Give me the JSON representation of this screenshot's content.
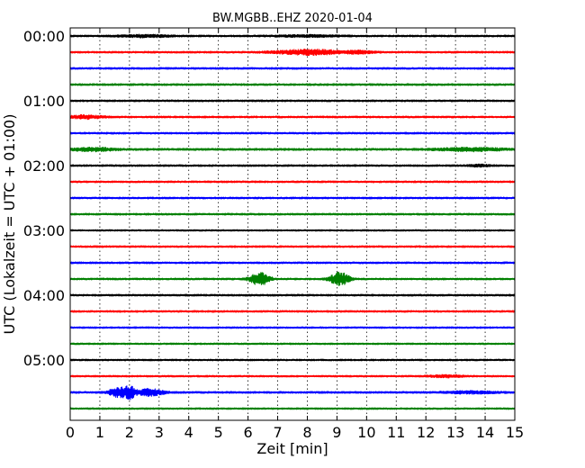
{
  "chart_data": {
    "type": "line",
    "title": "BW.MGBB..EHZ 2020-01-04",
    "xlabel": "Zeit  [min]",
    "ylabel": "UTC (Lokalzeit = UTC + 01:00)",
    "xlim": [
      0,
      15
    ],
    "x_ticks": [
      "0",
      "1",
      "2",
      "3",
      "4",
      "5",
      "6",
      "7",
      "8",
      "9",
      "10",
      "11",
      "12",
      "13",
      "14",
      "15"
    ],
    "y_tick_labels": [
      "00:00",
      "01:00",
      "02:00",
      "03:00",
      "04:00",
      "05:00"
    ],
    "grid": "vertical dotted at each minute",
    "trace_interval_min": 15,
    "trace_colors": [
      "#000000",
      "#ff0000",
      "#0000ff",
      "#008000"
    ],
    "series": [
      {
        "start": "00:00",
        "color": "#000000",
        "amplitude": 0.6,
        "events": [
          {
            "t": 2.5,
            "width": 1.2,
            "amp": 0.7
          },
          {
            "t": 8.0,
            "width": 1.5,
            "amp": 0.5
          }
        ]
      },
      {
        "start": "00:15",
        "color": "#ff0000",
        "amplitude": 0.6,
        "events": [
          {
            "t": 8.1,
            "width": 1.6,
            "amp": 1.7
          },
          {
            "t": 9.8,
            "width": 0.6,
            "amp": 0.8
          }
        ]
      },
      {
        "start": "00:30",
        "color": "#0000ff",
        "amplitude": 0.6,
        "events": []
      },
      {
        "start": "00:45",
        "color": "#008000",
        "amplitude": 0.65,
        "events": []
      },
      {
        "start": "01:00",
        "color": "#000000",
        "amplitude": 0.6,
        "events": []
      },
      {
        "start": "01:15",
        "color": "#ff0000",
        "amplitude": 0.6,
        "events": [
          {
            "t": 0.5,
            "width": 0.8,
            "amp": 1.1
          }
        ]
      },
      {
        "start": "01:30",
        "color": "#0000ff",
        "amplitude": 0.6,
        "events": []
      },
      {
        "start": "01:45",
        "color": "#008000",
        "amplitude": 0.7,
        "events": [
          {
            "t": 0.8,
            "width": 1.0,
            "amp": 1.0
          },
          {
            "t": 13.5,
            "width": 1.5,
            "amp": 1.0
          }
        ]
      },
      {
        "start": "02:00",
        "color": "#000000",
        "amplitude": 0.6,
        "events": [
          {
            "t": 13.8,
            "width": 0.5,
            "amp": 0.6
          }
        ]
      },
      {
        "start": "02:15",
        "color": "#ff0000",
        "amplitude": 0.6,
        "events": []
      },
      {
        "start": "02:30",
        "color": "#0000ff",
        "amplitude": 0.6,
        "events": []
      },
      {
        "start": "02:45",
        "color": "#008000",
        "amplitude": 0.6,
        "events": []
      },
      {
        "start": "03:00",
        "color": "#000000",
        "amplitude": 0.5,
        "events": []
      },
      {
        "start": "03:15",
        "color": "#ff0000",
        "amplitude": 0.6,
        "events": []
      },
      {
        "start": "03:30",
        "color": "#0000ff",
        "amplitude": 0.6,
        "events": []
      },
      {
        "start": "03:45",
        "color": "#008000",
        "amplitude": 0.6,
        "events": [
          {
            "t": 6.4,
            "width": 0.45,
            "amp": 4.5
          },
          {
            "t": 9.1,
            "width": 0.45,
            "amp": 4.5
          }
        ]
      },
      {
        "start": "04:00",
        "color": "#000000",
        "amplitude": 0.6,
        "events": []
      },
      {
        "start": "04:15",
        "color": "#ff0000",
        "amplitude": 0.6,
        "events": []
      },
      {
        "start": "04:30",
        "color": "#0000ff",
        "amplitude": 0.55,
        "events": []
      },
      {
        "start": "04:45",
        "color": "#008000",
        "amplitude": 0.55,
        "events": []
      },
      {
        "start": "05:00",
        "color": "#000000",
        "amplitude": 0.55,
        "events": []
      },
      {
        "start": "05:15",
        "color": "#ff0000",
        "amplitude": 0.55,
        "events": [
          {
            "t": 12.7,
            "width": 0.8,
            "amp": 0.7
          }
        ]
      },
      {
        "start": "05:30",
        "color": "#0000ff",
        "amplitude": 0.65,
        "events": [
          {
            "t": 1.6,
            "width": 0.4,
            "amp": 3.0
          },
          {
            "t": 2.0,
            "width": 0.3,
            "amp": 4.0
          },
          {
            "t": 2.7,
            "width": 0.6,
            "amp": 2.2
          },
          {
            "t": 13.5,
            "width": 1.2,
            "amp": 0.7
          }
        ]
      },
      {
        "start": "05:45",
        "color": "#008000",
        "amplitude": 0.55,
        "events": []
      }
    ]
  }
}
